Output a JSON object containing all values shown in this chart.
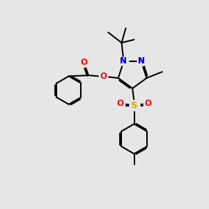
{
  "background_color": "#e6e6e6",
  "atom_colors": {
    "N": "#0000ee",
    "O": "#ff0000",
    "S": "#ccaa00",
    "C": "#000000"
  },
  "bond_color": "#000000",
  "bond_width": 1.5,
  "font_size_atom": 8.5
}
